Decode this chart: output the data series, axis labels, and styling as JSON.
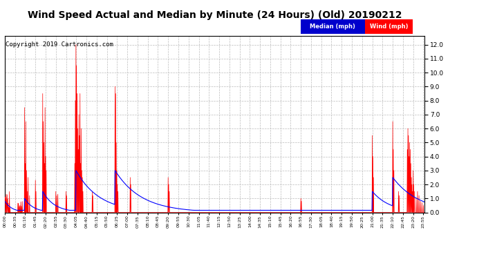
{
  "title": "Wind Speed Actual and Median by Minute (24 Hours) (Old) 20190212",
  "copyright": "Copyright 2019 Cartronics.com",
  "y_ticks": [
    0.0,
    1.0,
    2.0,
    3.0,
    4.0,
    5.0,
    6.0,
    7.0,
    8.0,
    9.0,
    10.0,
    11.0,
    12.0
  ],
  "y_tick_labels": [
    "0.0",
    "1.0",
    "2.0",
    "3.0",
    "4.0",
    "5.0",
    "6.0",
    "7.0",
    "8.0",
    "9.0",
    "10.0",
    "11.0",
    "12.0"
  ],
  "ylim": [
    0,
    12.6
  ],
  "total_minutes": 1440,
  "wind_color": "#ff0000",
  "median_color": "#0000ff",
  "background_color": "#ffffff",
  "grid_color": "#bbbbbb",
  "legend_median_bg": "#0000cc",
  "legend_wind_bg": "#ff0000",
  "title_fontsize": 10,
  "copyright_fontsize": 6.5
}
